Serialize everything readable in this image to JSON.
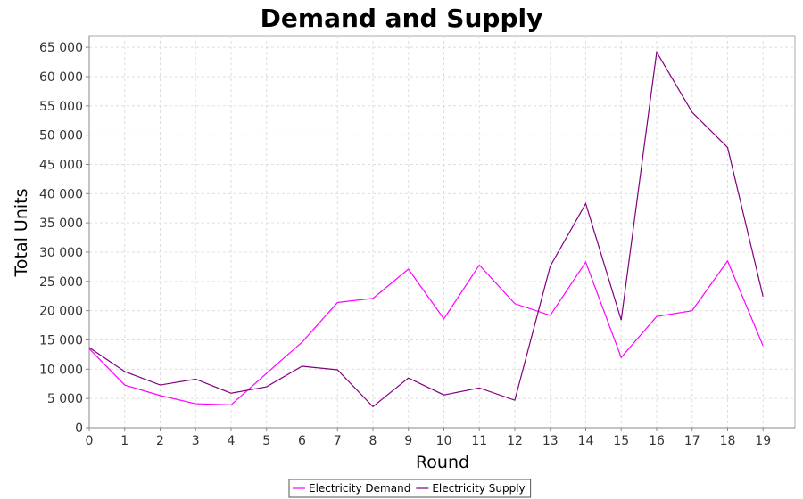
{
  "chart_data": {
    "type": "line",
    "title": "Demand and Supply",
    "xlabel": "Round",
    "ylabel": "Total Units",
    "x": [
      0,
      1,
      2,
      3,
      4,
      5,
      6,
      7,
      8,
      9,
      10,
      11,
      12,
      13,
      14,
      15,
      16,
      17,
      18,
      19
    ],
    "xlim": [
      0,
      19.9
    ],
    "ylim": [
      0,
      67000
    ],
    "y_ticks": [
      0,
      5000,
      10000,
      15000,
      20000,
      25000,
      30000,
      35000,
      40000,
      45000,
      50000,
      55000,
      60000,
      65000
    ],
    "y_tick_labels": [
      "0",
      "5 000",
      "10 000",
      "15 000",
      "20 000",
      "25 000",
      "30 000",
      "35 000",
      "40 000",
      "45 000",
      "50 000",
      "55 000",
      "60 000",
      "65 000"
    ],
    "grid": true,
    "legend_position": "bottom-center",
    "series": [
      {
        "name": "Electricity Demand",
        "color": "#ff00ff",
        "values": [
          13500,
          7300,
          5500,
          4100,
          3900,
          9300,
          14600,
          21400,
          22100,
          27100,
          18600,
          27800,
          21200,
          19200,
          28300,
          12000,
          19000,
          20000,
          28500,
          14000
        ]
      },
      {
        "name": "Electricity Supply",
        "color": "#800080",
        "values": [
          13700,
          9600,
          7300,
          8300,
          5900,
          7000,
          10500,
          9900,
          3600,
          8500,
          5600,
          6800,
          4700,
          27600,
          38300,
          18400,
          64200,
          53900,
          47900,
          22400
        ]
      }
    ]
  }
}
